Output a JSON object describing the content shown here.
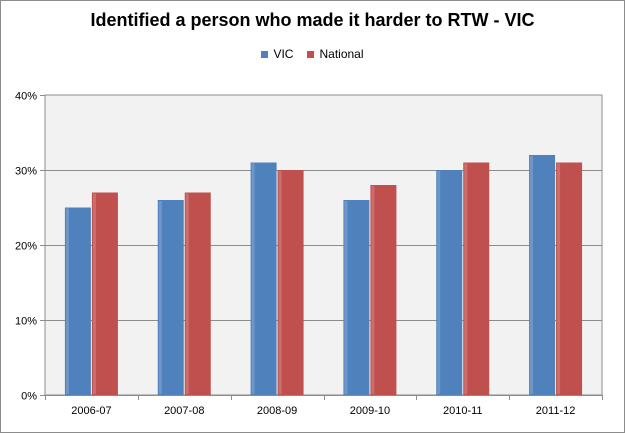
{
  "chart_data": {
    "type": "bar",
    "title": "Identified a person who made it harder to RTW - VIC",
    "categories": [
      "2006-07",
      "2007-08",
      "2008-09",
      "2009-10",
      "2010-11",
      "2011-12"
    ],
    "series": [
      {
        "name": "VIC",
        "values": [
          25,
          26,
          31,
          26,
          30,
          32
        ],
        "color": "#4f81bd"
      },
      {
        "name": "National",
        "values": [
          27,
          27,
          30,
          28,
          31,
          31
        ],
        "color": "#c0504d"
      }
    ],
    "y_ticks": [
      "0%",
      "10%",
      "20%",
      "30%",
      "40%"
    ],
    "ylim": [
      0,
      40
    ],
    "grid": true,
    "legend_position": "top-center",
    "plot_background": "#f2f2f2"
  }
}
